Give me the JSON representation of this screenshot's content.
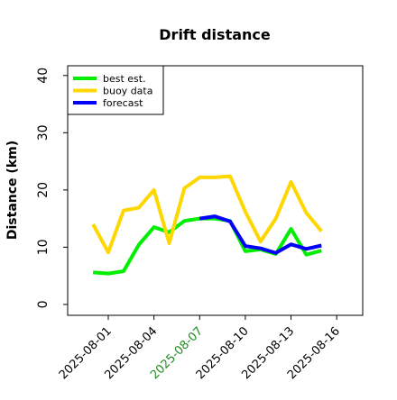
{
  "chart_data": {
    "type": "line",
    "title": "Drift distance",
    "ylabel": "Distance (km)",
    "x": [
      "2025-07-31",
      "2025-08-01",
      "2025-08-02",
      "2025-08-03",
      "2025-08-04",
      "2025-08-05",
      "2025-08-06",
      "2025-08-07",
      "2025-08-08",
      "2025-08-09",
      "2025-08-10",
      "2025-08-11",
      "2025-08-12",
      "2025-08-13",
      "2025-08-14",
      "2025-08-15"
    ],
    "series": [
      {
        "name": "best est.",
        "color": "#00ee00",
        "values": [
          5.6,
          5.4,
          5.8,
          10.4,
          13.5,
          12.6,
          14.6,
          15,
          15,
          14.6,
          9.3,
          9.6,
          8.8,
          13.2,
          8.7,
          9.4
        ]
      },
      {
        "name": "buoy data",
        "color": "#ffd700",
        "values": [
          14,
          9.1,
          16.4,
          16.9,
          20,
          10.7,
          20.3,
          22.2,
          22.2,
          22.4,
          16.2,
          11,
          15,
          21.4,
          16,
          12.8
        ]
      },
      {
        "name": "forecast",
        "color": "#0000ff",
        "values": [
          null,
          null,
          null,
          null,
          null,
          null,
          null,
          15,
          15.4,
          14.5,
          10.2,
          9.8,
          9,
          10.5,
          9.7,
          10.3
        ]
      }
    ],
    "xlim": [
      "2025-07-29T08:00",
      "2025-08-17T17:00"
    ],
    "xticks": [
      "2025-08-01",
      "2025-08-04",
      "2025-08-07",
      "2025-08-10",
      "2025-08-13",
      "2025-08-16"
    ],
    "xtick_colors": [
      "#000000",
      "#000000",
      "#228b22",
      "#000000",
      "#000000",
      "#000000"
    ],
    "ylim": [
      -1.9,
      41.7
    ],
    "yticks": [
      0,
      10,
      20,
      30,
      40
    ],
    "grid": false,
    "legend": "upper left"
  }
}
